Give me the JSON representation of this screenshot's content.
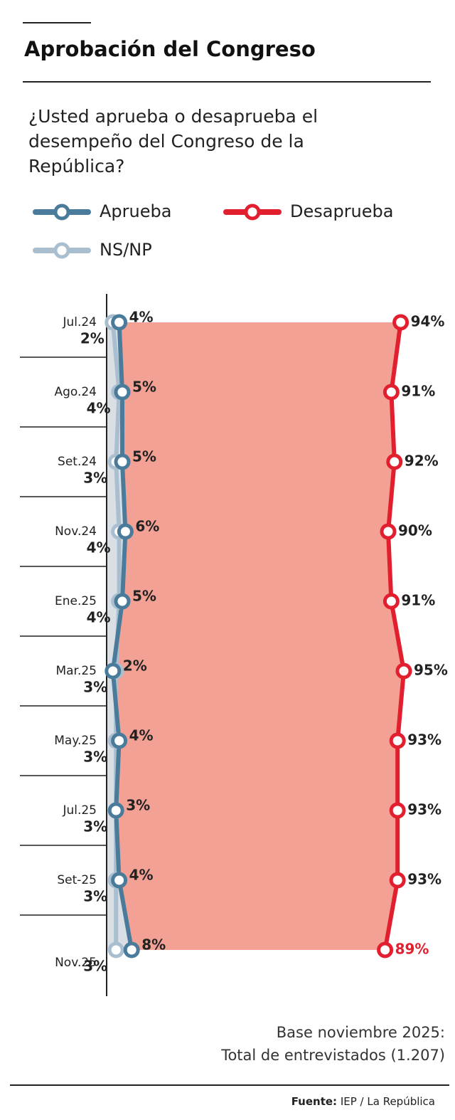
{
  "chart_data": {
    "type": "line",
    "orientation": "horizontal",
    "title": "Aprobación del Congreso",
    "subtitle": [
      "¿Usted aprueba o desaprueba el",
      "desempeño del Congreso de la",
      "República?"
    ],
    "categories": [
      "Jul.24",
      "Ago.24",
      "Set.24",
      "Nov.24",
      "Ene.25",
      "Mar.25",
      "May.25",
      "Jul.25",
      "Set-25",
      "Nov.25"
    ],
    "series": [
      {
        "name": "Aprueba",
        "color": "#4a7b9b",
        "values": [
          4,
          5,
          5,
          6,
          5,
          2,
          4,
          3,
          4,
          8
        ],
        "value_labels": [
          "4%",
          "5%",
          "5%",
          "6%",
          "5%",
          "2%",
          "4%",
          "3%",
          "4%",
          "8%"
        ]
      },
      {
        "name": "Desaprueba",
        "color": "#e21f2f",
        "values": [
          94,
          91,
          92,
          90,
          91,
          95,
          93,
          93,
          93,
          89
        ],
        "value_labels": [
          "94%",
          "91%",
          "92%",
          "90%",
          "91%",
          "95%",
          "93%",
          "93%",
          "93%",
          "89%"
        ]
      },
      {
        "name": "NS/NP",
        "color": "#a9bfd0",
        "values": [
          2,
          4,
          3,
          4,
          4,
          3,
          3,
          3,
          3,
          3
        ],
        "value_labels": [
          "2%",
          "4%",
          "3%",
          "4%",
          "4%",
          "3%",
          "3%",
          "3%",
          "3%",
          "3%"
        ]
      }
    ],
    "xlim": [
      0,
      100
    ],
    "notes": [
      "Base noviembre 2025:",
      "Total de entrevistados (1.207)"
    ],
    "source": {
      "label": "Fuente:",
      "text": "IEP / La República"
    }
  }
}
